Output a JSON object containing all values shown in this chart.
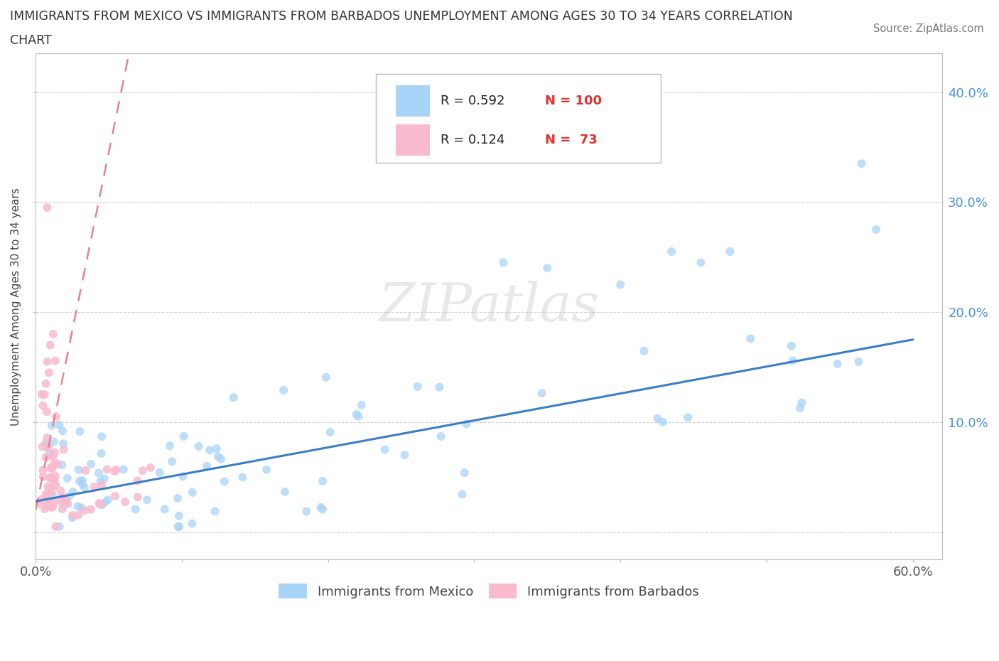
{
  "title_line1": "IMMIGRANTS FROM MEXICO VS IMMIGRANTS FROM BARBADOS UNEMPLOYMENT AMONG AGES 30 TO 34 YEARS CORRELATION",
  "title_line2": "CHART",
  "source_text": "Source: ZipAtlas.com",
  "ylabel": "Unemployment Among Ages 30 to 34 years",
  "xlim": [
    0.0,
    0.62
  ],
  "ylim": [
    -0.025,
    0.435
  ],
  "mexico_color": "#A8D4F7",
  "barbados_color": "#F9BACE",
  "mexico_line_color": "#3A7EC8",
  "barbados_line_color": "#E88090",
  "R_mexico": 0.592,
  "N_mexico": 100,
  "R_barbados": 0.124,
  "N_barbados": 73,
  "watermark": "ZIPatlas"
}
